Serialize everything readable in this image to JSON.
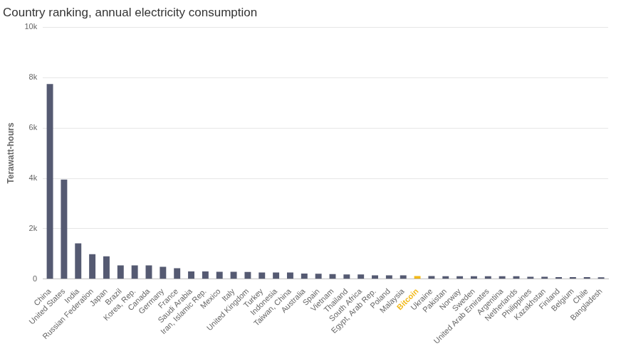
{
  "chart_data": {
    "type": "bar",
    "title": "Country ranking, annual electricity consumption",
    "y_label": "Terawatt-hours",
    "categories": [
      "China",
      "United States",
      "India",
      "Russian Federation",
      "Japan",
      "Brazil",
      "Korea, Rep.",
      "Canada",
      "Germany",
      "France",
      "Saudi Arabia",
      "Iran, Islamic Rep.",
      "Mexico",
      "Italy",
      "United Kingdom",
      "Turkey",
      "Indonesia",
      "Taiwan, China",
      "Australia",
      "Spain",
      "Vietnam",
      "Thailand",
      "South Africa",
      "Egypt, Arab Rep.",
      "Poland",
      "Malaysia",
      "Bitcoin",
      "Ukraine",
      "Pakistan",
      "Norway",
      "Sweden",
      "United Arab Emirates",
      "Argentina",
      "Netherlands",
      "Philippines",
      "Kazakhstan",
      "Finland",
      "Belgium",
      "Chile",
      "Bangladesh"
    ],
    "values": [
      7750,
      3950,
      1420,
      990,
      900,
      540,
      540,
      540,
      490,
      430,
      300,
      300,
      290,
      290,
      280,
      260,
      260,
      260,
      220,
      210,
      200,
      180,
      180,
      150,
      150,
      150,
      120,
      120,
      115,
      115,
      115,
      115,
      110,
      110,
      90,
      90,
      80,
      80,
      75,
      70
    ],
    "color": "#555a72",
    "colors": [
      "#555a72",
      "#555a72",
      "#555a72",
      "#555a72",
      "#555a72",
      "#555a72",
      "#555a72",
      "#555a72",
      "#555a72",
      "#555a72",
      "#555a72",
      "#555a72",
      "#555a72",
      "#555a72",
      "#555a72",
      "#555a72",
      "#555a72",
      "#555a72",
      "#555a72",
      "#555a72",
      "#555a72",
      "#555a72",
      "#555a72",
      "#555a72",
      "#555a72",
      "#555a72",
      "#f2b91a",
      "#555a72",
      "#555a72",
      "#555a72",
      "#555a72",
      "#555a72",
      "#555a72",
      "#555a72",
      "#555a72",
      "#555a72",
      "#555a72",
      "#555a72",
      "#555a72",
      "#555a72"
    ],
    "ylim": [
      0,
      10000
    ],
    "yticks": [
      0,
      {
        "value": 2000,
        "label": "2k"
      },
      {
        "value": 4000,
        "label": "4k"
      },
      {
        "value": 6000,
        "label": "6k"
      },
      {
        "value": 8000,
        "label": "8k"
      },
      {
        "value": 10000,
        "label": "10k"
      }
    ],
    "grid": true
  }
}
